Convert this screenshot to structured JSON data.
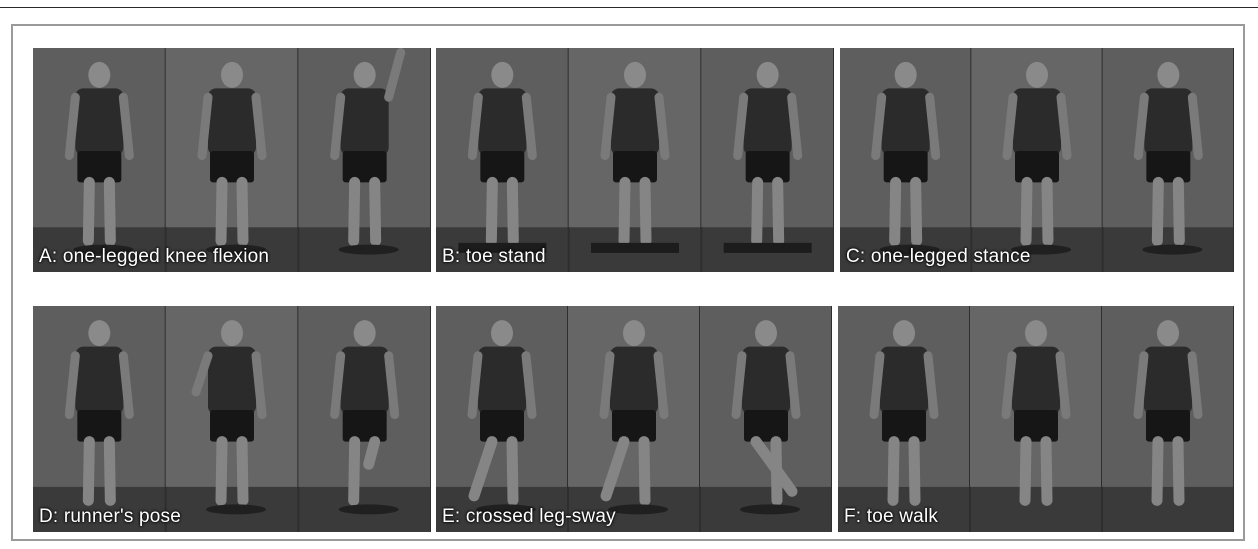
{
  "figure": {
    "panels": [
      {
        "caption": "A: one-legged knee flexion",
        "base_color": "#5a5a5a"
      },
      {
        "caption": "B: toe stand",
        "base_color": "#5c5c5c"
      },
      {
        "caption": "C: one-legged stance",
        "base_color": "#595959"
      },
      {
        "caption": "D: runner's pose",
        "base_color": "#585858"
      },
      {
        "caption": "E: crossed leg-sway",
        "base_color": "#5b5b5b"
      },
      {
        "caption": "F: toe walk",
        "base_color": "#575757"
      }
    ]
  }
}
